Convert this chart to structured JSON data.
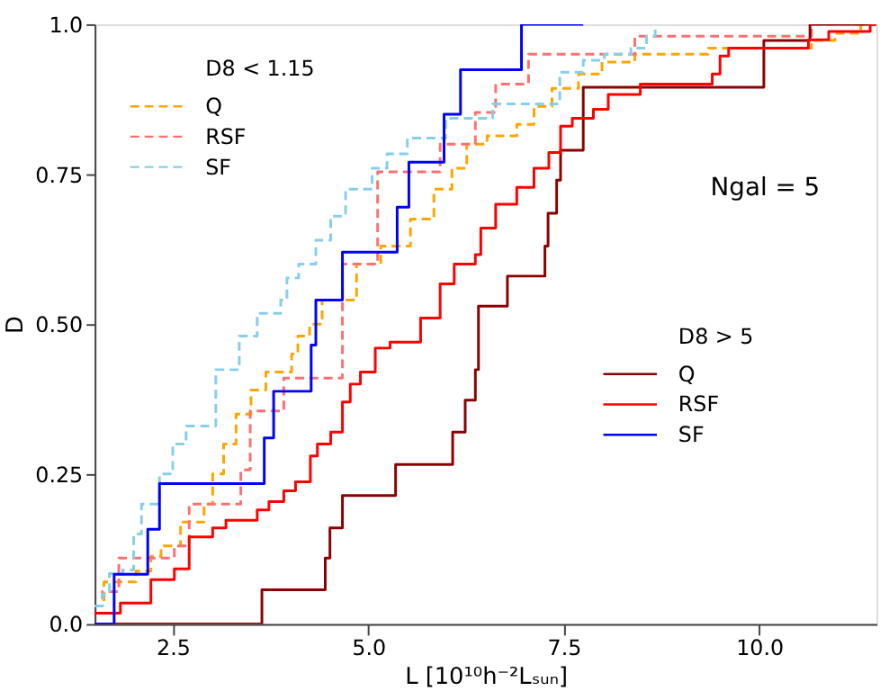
{
  "chart_data": {
    "type": "step",
    "xlabel": "L [10¹⁰h⁻²Lₛᵤₙ]",
    "ylabel": "D",
    "xlim": [
      1.5,
      11.5
    ],
    "ylim": [
      0,
      1
    ],
    "xticks": [
      2.5,
      {
        "value": 5,
        "label": "5.0"
      },
      7.5,
      {
        "value": 10,
        "label": "10.0"
      }
    ],
    "yticks": [
      {
        "value": 0,
        "label": "0.0"
      },
      0.25,
      {
        "value": 0.5,
        "label": "0.50"
      },
      0.75,
      {
        "value": 1,
        "label": "1.0"
      }
    ],
    "legend": "top left",
    "grid": false,
    "annotations": [
      "D8 < 1.15",
      "D8 > 5",
      "Ngal = 5"
    ],
    "series": [
      {
        "name": "Q",
        "color": "#ffa500",
        "line_style": "dashed",
        "x": [
          1.5,
          1.62,
          2.03,
          2.22,
          2.35,
          2.6,
          2.9,
          3.01,
          3.15,
          3.31,
          3.5,
          3.69,
          4.02,
          4.1,
          4.25,
          4.41,
          4.85,
          5.16,
          5.54,
          5.84,
          6.07,
          6.26,
          6.52,
          6.9,
          7.12,
          7.35,
          7.69,
          7.99,
          8.41,
          9.35,
          10.67,
          10.97,
          11.3,
          11.5
        ],
        "values": [
          0.03,
          0.07,
          0.088,
          0.113,
          0.13,
          0.17,
          0.2,
          0.25,
          0.3,
          0.35,
          0.39,
          0.42,
          0.45,
          0.48,
          0.5,
          0.54,
          0.6,
          0.63,
          0.675,
          0.725,
          0.76,
          0.8,
          0.814,
          0.833,
          0.863,
          0.893,
          0.917,
          0.937,
          0.95,
          0.96,
          0.973,
          0.985,
          1.0,
          1.0
        ]
      },
      {
        "name": "RSF",
        "color": "#ff7070",
        "line_style": "dashed",
        "x": [
          1.5,
          1.6,
          1.81,
          2.52,
          2.71,
          3.37,
          3.49,
          3.92,
          4.67,
          5.12,
          5.92,
          6.37,
          6.63,
          7.05,
          8.41,
          10.67,
          11.5
        ],
        "values": [
          0.03,
          0.054,
          0.11,
          0.13,
          0.2,
          0.257,
          0.355,
          0.41,
          0.6,
          0.754,
          0.8,
          0.853,
          0.9,
          0.95,
          0.98,
          1.0,
          1.0
        ]
      },
      {
        "name": "SF",
        "color": "#87ceeb",
        "line_style": "dashed",
        "x": [
          1.5,
          1.6,
          1.69,
          1.86,
          2.0,
          2.1,
          2.33,
          2.5,
          2.67,
          3.05,
          3.35,
          3.58,
          3.88,
          3.96,
          4.11,
          4.33,
          4.52,
          4.71,
          5.05,
          5.24,
          5.5,
          5.99,
          6.59,
          7.45,
          7.75,
          8.02,
          8.36,
          8.56,
          8.67
        ],
        "values": [
          0.03,
          0.05,
          0.084,
          0.09,
          0.15,
          0.2,
          0.25,
          0.3,
          0.33,
          0.424,
          0.48,
          0.518,
          0.54,
          0.577,
          0.6,
          0.64,
          0.68,
          0.725,
          0.76,
          0.784,
          0.81,
          0.843,
          0.867,
          0.92,
          0.94,
          0.95,
          0.96,
          0.98,
          1.0
        ]
      },
      {
        "name": "Q",
        "color": "#8b0000",
        "line_style": "solid",
        "x": [
          1.5,
          3.64,
          4.45,
          4.51,
          4.67,
          5.35,
          6.08,
          6.24,
          6.37,
          6.41,
          6.78,
          7.26,
          7.3,
          7.41,
          7.46,
          7.75,
          10.06,
          10.65,
          11.5
        ],
        "values": [
          0,
          0.057,
          0.11,
          0.16,
          0.214,
          0.266,
          0.32,
          0.373,
          0.424,
          0.53,
          0.58,
          0.63,
          0.685,
          0.74,
          0.79,
          0.895,
          0.973,
          1.0,
          1.0
        ]
      },
      {
        "name": "RSF",
        "color": "#ff0000",
        "line_style": "solid",
        "x": [
          1.5,
          1.83,
          2.22,
          2.52,
          2.71,
          3.01,
          3.18,
          3.58,
          3.73,
          3.92,
          4.07,
          4.26,
          4.35,
          4.52,
          4.67,
          4.77,
          4.9,
          5.09,
          5.28,
          5.67,
          5.92,
          6.1,
          6.37,
          6.44,
          6.63,
          6.9,
          7.12,
          7.31,
          7.46,
          7.61,
          7.88,
          8.07,
          8.48,
          9.4,
          9.5,
          9.61,
          10.63,
          10.89,
          11.42,
          11.5
        ],
        "values": [
          0.018,
          0.035,
          0.074,
          0.092,
          0.145,
          0.16,
          0.173,
          0.19,
          0.204,
          0.222,
          0.237,
          0.28,
          0.3,
          0.32,
          0.37,
          0.4,
          0.42,
          0.46,
          0.47,
          0.51,
          0.567,
          0.6,
          0.616,
          0.66,
          0.7,
          0.728,
          0.76,
          0.786,
          0.83,
          0.843,
          0.858,
          0.883,
          0.9,
          0.917,
          0.947,
          0.96,
          0.974,
          0.988,
          1.0,
          1.0
        ]
      },
      {
        "name": "SF",
        "color": "#0000ff",
        "line_style": "solid",
        "x": [
          1.5,
          1.75,
          2.18,
          2.33,
          3.67,
          3.79,
          4.27,
          4.33,
          4.67,
          5.37,
          5.52,
          5.97,
          6.18,
          6.96,
          7.75
        ],
        "values": [
          0,
          0.083,
          0.158,
          0.234,
          0.31,
          0.388,
          0.465,
          0.54,
          0.62,
          0.695,
          0.77,
          0.85,
          0.924,
          1.0,
          1.0
        ]
      }
    ]
  }
}
